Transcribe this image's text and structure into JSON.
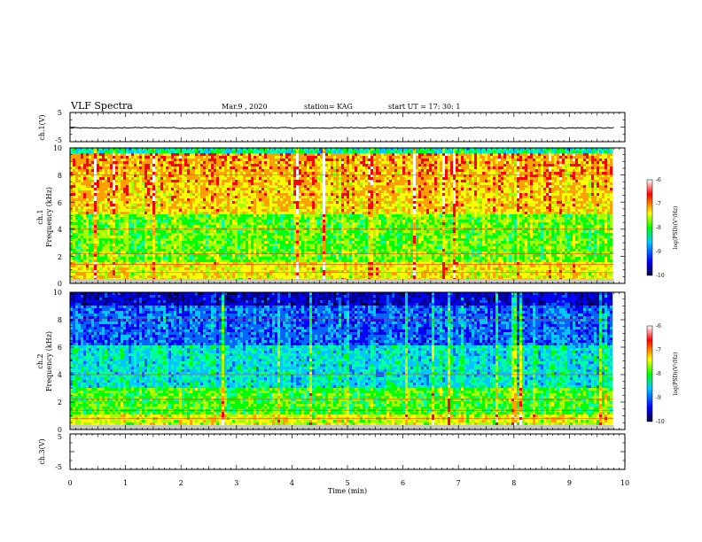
{
  "header": {
    "title": "VLF Spectra",
    "date": "Mar.9 , 2020",
    "station": "station= KAG",
    "start": "start UT = 17: 30: 1"
  },
  "chart_data": [
    {
      "type": "line",
      "panel": "ch1-voltage",
      "ylabel": "ch.1(V)",
      "ylim": [
        -5,
        5
      ],
      "yticks": [
        "5",
        "-5"
      ],
      "xlim": [
        0,
        10
      ],
      "series": [
        {
          "values": [
            -0.3,
            -0.2,
            -0.35,
            -0.25,
            -0.3,
            -0.2,
            -0.3,
            -0.25,
            -0.3,
            -0.3
          ]
        }
      ]
    },
    {
      "type": "heatmap",
      "panel": "ch1-spectrogram",
      "ylabel": "ch.1 Frequency (kHz)",
      "ylabel_line1": "ch.1",
      "ylabel_line2": "Frequency (kHz)",
      "ylim": [
        0,
        10
      ],
      "yticks": [
        "0",
        "2",
        "4",
        "6",
        "8",
        "10"
      ],
      "xlim": [
        0,
        9.8
      ],
      "colorbar": {
        "label": "log(PSD)(V²/Hz)",
        "range": [
          -10,
          -6
        ],
        "ticks": [
          "-6",
          "-7",
          "-8",
          "-9",
          "-10"
        ]
      }
    },
    {
      "type": "heatmap",
      "panel": "ch2-spectrogram",
      "ylabel": "ch.2 Frequency (kHz)",
      "ylabel_line1": "ch.2",
      "ylabel_line2": "Frequency (kHz)",
      "ylim": [
        0,
        10
      ],
      "yticks": [
        "0",
        "2",
        "4",
        "6",
        "8",
        "10"
      ],
      "xlim": [
        0,
        9.8
      ],
      "colorbar": {
        "label": "log(PSD)(V²/Hz)",
        "range": [
          -10,
          -6
        ],
        "ticks": [
          "-6",
          "-7",
          "-8",
          "-9",
          "-10"
        ]
      }
    },
    {
      "type": "line",
      "panel": "ch3-voltage",
      "ylabel": "ch.3(V)",
      "ylim": [
        -5,
        5
      ],
      "yticks": [
        "5",
        "-5"
      ],
      "xlim": [
        0,
        10
      ],
      "series": [
        {
          "values": []
        }
      ]
    }
  ],
  "xaxis": {
    "label": "Time (min)",
    "range": [
      0,
      10
    ],
    "ticks": [
      "0",
      "1",
      "2",
      "3",
      "4",
      "5",
      "6",
      "7",
      "8",
      "9",
      "10"
    ]
  },
  "colors": {
    "scale": [
      "#00003c",
      "#0000ff",
      "#00c8ff",
      "#00ff00",
      "#ffff00",
      "#ff0000",
      "#ffffff"
    ]
  }
}
